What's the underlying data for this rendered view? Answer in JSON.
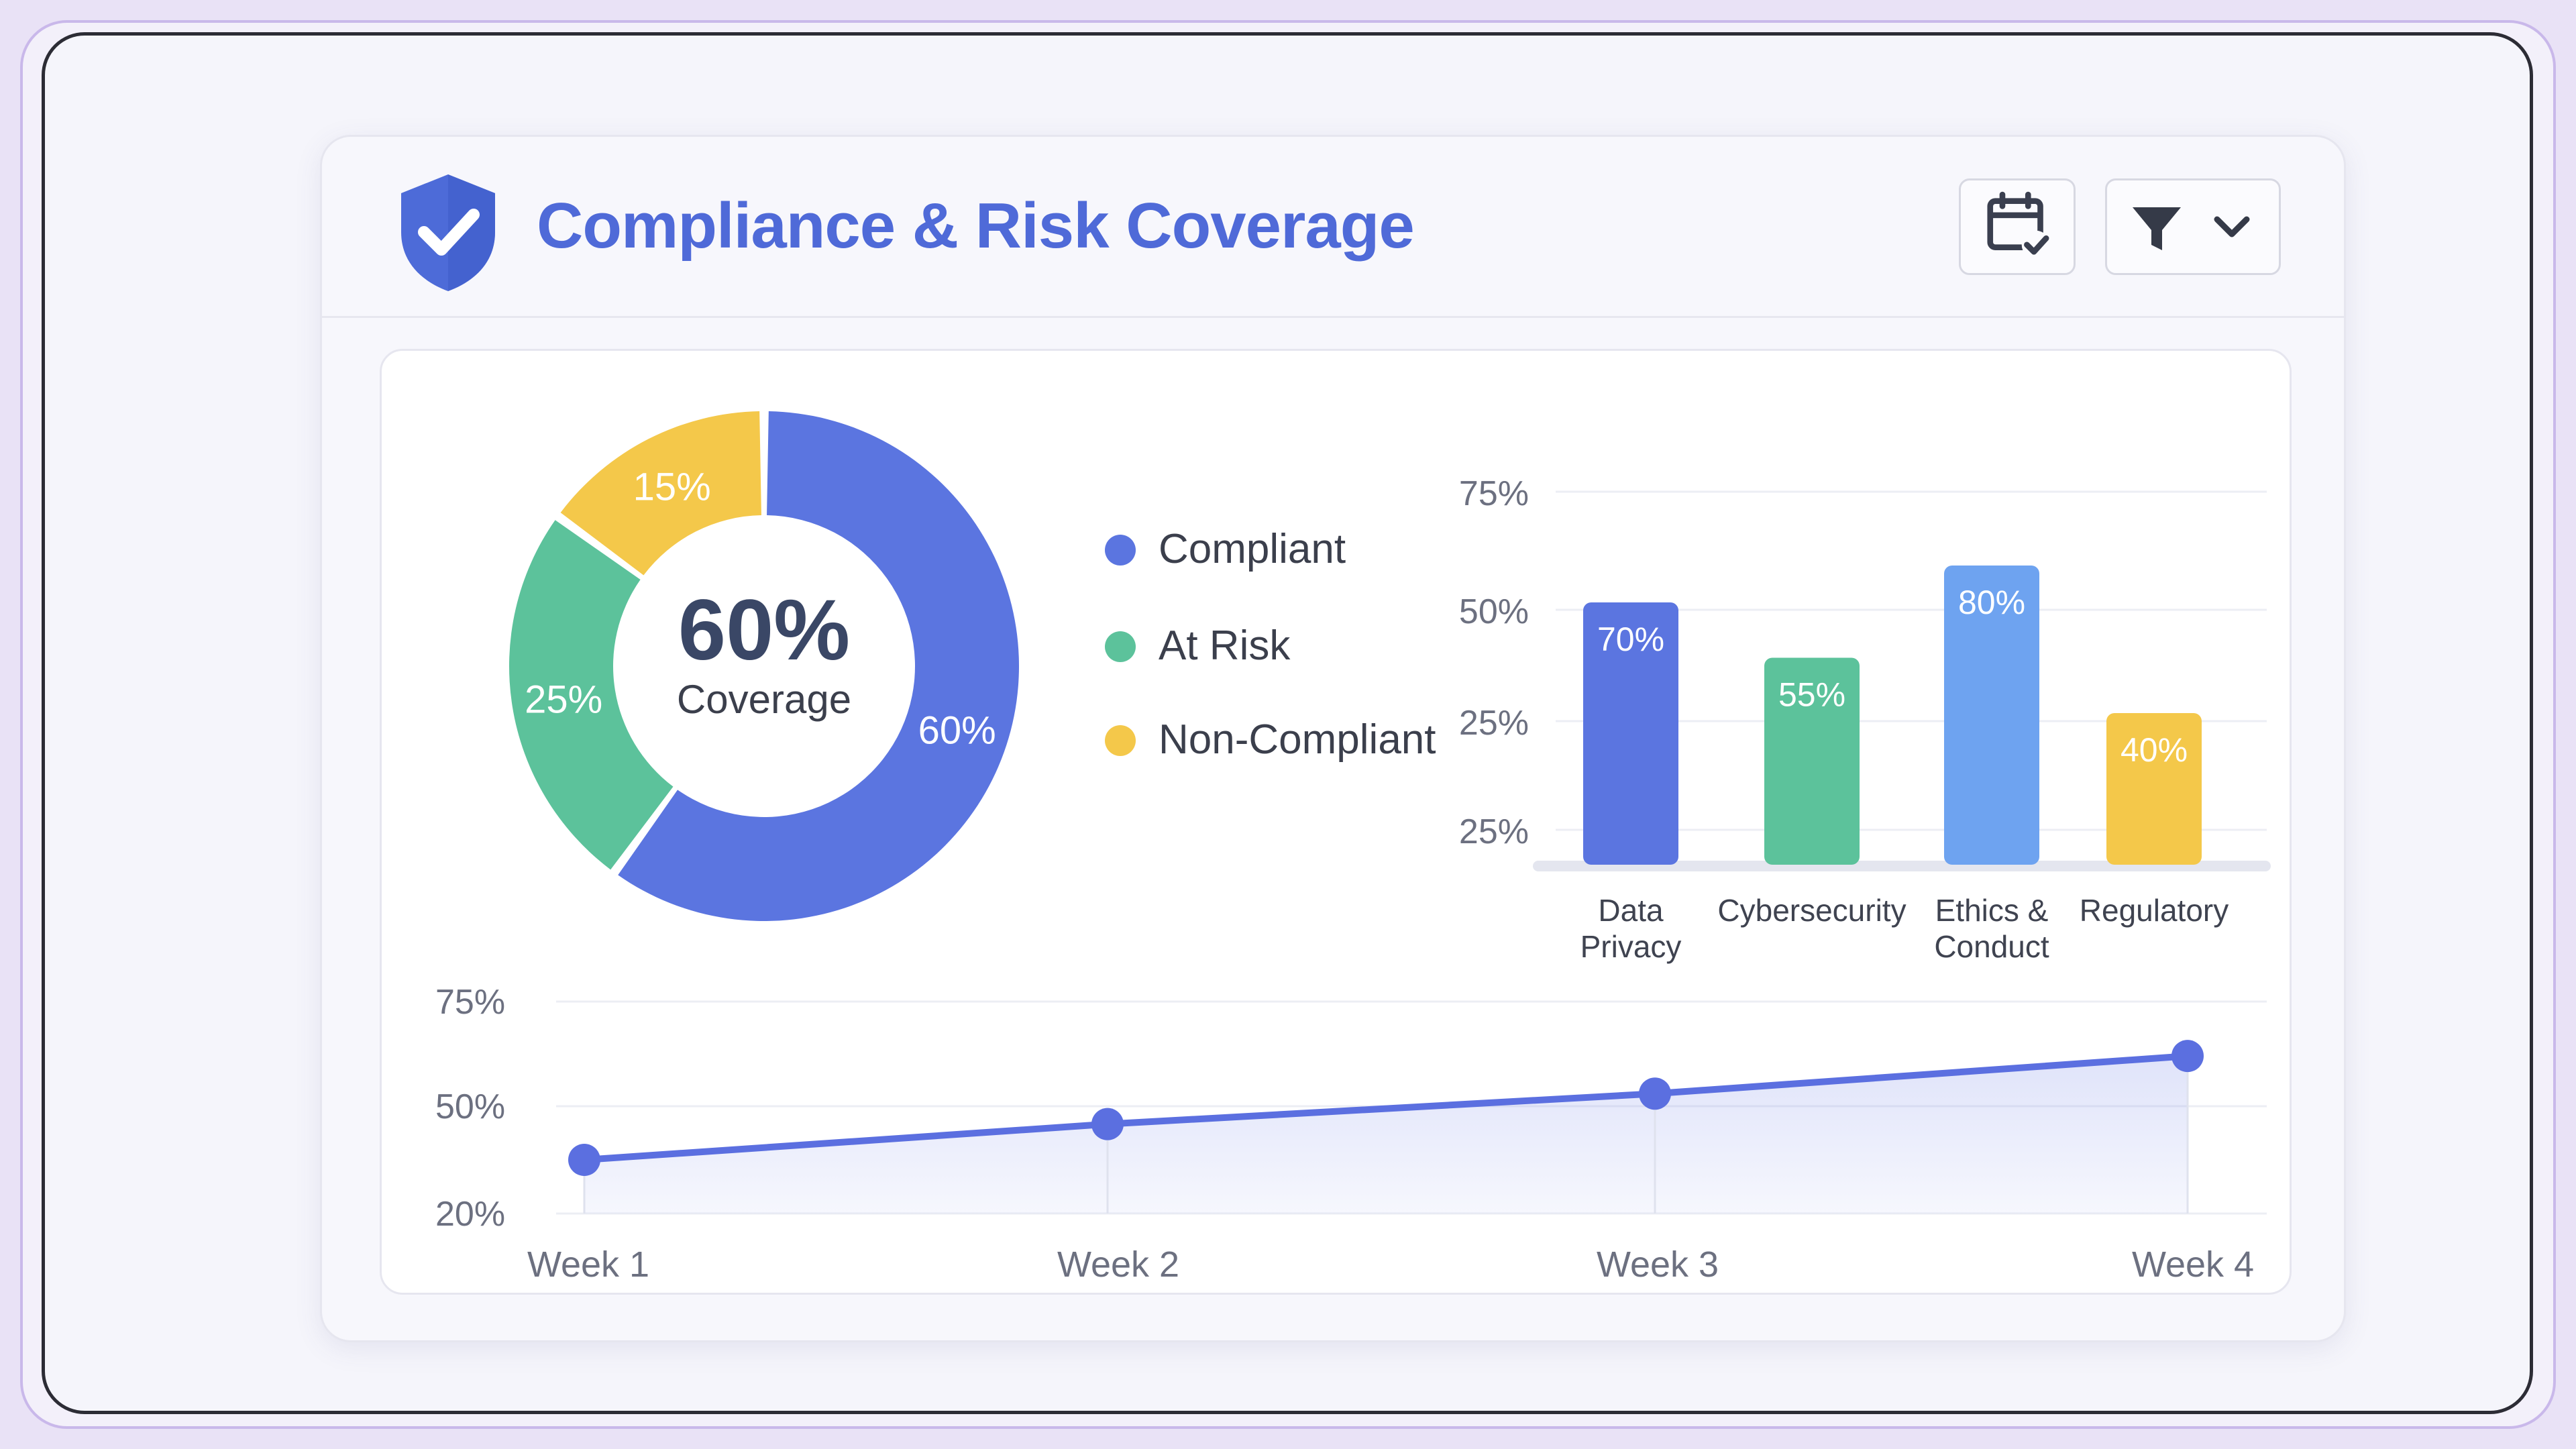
{
  "header": {
    "title": "Compliance & Risk Coverage",
    "icons": {
      "logo": "shield-check-icon",
      "calendar": "calendar-check-icon",
      "filter": "filter-icon",
      "chevron": "chevron-down-icon"
    }
  },
  "colors": {
    "compliant": "#5b75e0",
    "at_risk": "#5cc29b",
    "non_compliant": "#f4c84a",
    "light_blue": "#6ea3f0",
    "line": "#5b6fe0"
  },
  "chart_data": [
    {
      "type": "pie",
      "center_value": "60%",
      "center_label": "Coverage",
      "slices": [
        {
          "name": "Compliant",
          "value": 60,
          "label": "60%"
        },
        {
          "name": "At Risk",
          "value": 25,
          "label": "25%"
        },
        {
          "name": "Non-Compliant",
          "value": 15,
          "label": "15%"
        }
      ],
      "legend": [
        "Compliant",
        "At Risk",
        "Non-Compliant"
      ],
      "legend_position": "right"
    },
    {
      "type": "bar",
      "categories": [
        [
          "Data",
          "Privacy"
        ],
        [
          "Cybersecurity"
        ],
        [
          "Ethics &",
          "Conduct"
        ],
        [
          "Regulatory"
        ]
      ],
      "values": [
        70,
        55,
        80,
        40
      ],
      "value_labels": [
        "70%",
        "55%",
        "80%",
        "40%"
      ],
      "y_tick_labels": [
        "75%",
        "50%",
        "25%",
        "25%"
      ],
      "grid": true
    },
    {
      "type": "area",
      "x": [
        "Week 1",
        "Week 2",
        "Week 3",
        "Week 4"
      ],
      "values": [
        35,
        45,
        53,
        62
      ],
      "y_tick_labels": [
        "75%",
        "50%",
        "20%"
      ],
      "y_tick_values": [
        75,
        50,
        20
      ],
      "grid": true
    }
  ]
}
